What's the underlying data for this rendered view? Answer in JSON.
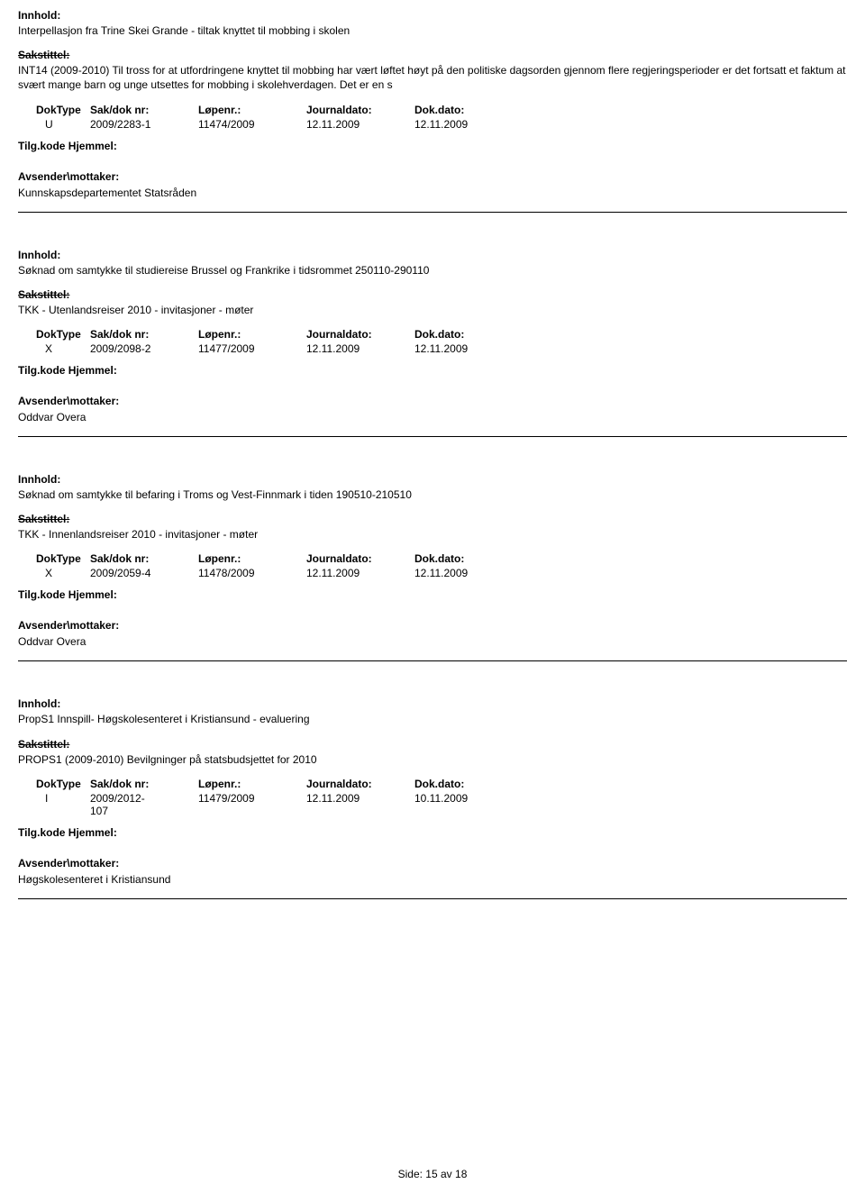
{
  "labels": {
    "innhold": "Innhold:",
    "sakstittel": "Sakstittel:",
    "doktype": "DokType",
    "sakdok": "Sak/dok nr:",
    "lopenr": "Løpenr.:",
    "journaldato": "Journaldato:",
    "dokdato": "Dok.dato:",
    "tilgkode": "Tilg.kode",
    "hjemmel": "Hjemmel:",
    "avsender": "Avsender\\mottaker:"
  },
  "entries": [
    {
      "innhold": "Interpellasjon fra Trine Skei Grande - tiltak knyttet til mobbing i skolen",
      "sakstittel": "INT14 (2009-2010)  Til tross for at utfordringene knyttet til mobbing har vært løftet høyt på den politiske dagsorden gjennom flere regjeringsperioder er det fortsatt et faktum at svært mange barn og unge utsettes for mobbing i skolehverdagen. Det er en s",
      "doktype": "U",
      "sakdok": "2009/2283-1",
      "lopenr": "11474/2009",
      "journaldato": "12.11.2009",
      "dokdato": "12.11.2009",
      "avsender": "Kunnskapsdepartementet Statsråden"
    },
    {
      "innhold": "Søknad om samtykke til studiereise Brussel og Frankrike i tidsrommet 250110-290110",
      "sakstittel": "TKK - Utenlandsreiser 2010 - invitasjoner - møter",
      "doktype": "X",
      "sakdok": "2009/2098-2",
      "lopenr": "11477/2009",
      "journaldato": "12.11.2009",
      "dokdato": "12.11.2009",
      "avsender": "Oddvar Overa"
    },
    {
      "innhold": "Søknad om samtykke til befaring i Troms og Vest-Finnmark i tiden 190510-210510",
      "sakstittel": "TKK - Innenlandsreiser 2010 - invitasjoner - møter",
      "doktype": "X",
      "sakdok": "2009/2059-4",
      "lopenr": "11478/2009",
      "journaldato": "12.11.2009",
      "dokdato": "12.11.2009",
      "avsender": "Oddvar Overa"
    },
    {
      "innhold": "PropS1 Innspill- Høgskolesenteret i Kristiansund - evaluering",
      "sakstittel": "PROPS1 (2009-2010)  Bevilgninger på statsbudsjettet for 2010",
      "doktype": "I",
      "sakdok": "2009/2012-107",
      "lopenr": "11479/2009",
      "journaldato": "12.11.2009",
      "dokdato": "10.11.2009",
      "avsender": "Høgskolesenteret i Kristiansund"
    }
  ],
  "footer": {
    "side_label": "Side:",
    "page_current": "15",
    "av_label": "av",
    "page_total": "18"
  }
}
